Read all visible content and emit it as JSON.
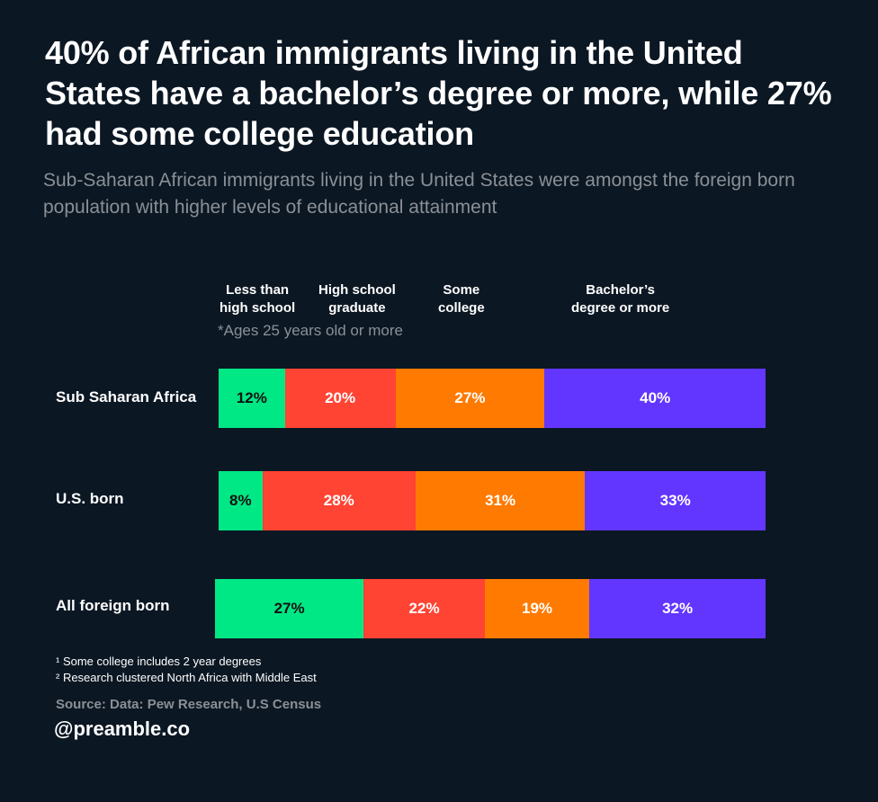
{
  "header": {
    "title": "40% of African immigrants living in the United States have a bachelor’s degree or more, while 27% had some college education",
    "subtitle": "Sub-Saharan African immigrants living in the United States were amongst the foreign born population with higher levels of educational attainment"
  },
  "legend": [
    {
      "line1": "Less than",
      "line2": "high school"
    },
    {
      "line1": "High school",
      "line2": "graduate"
    },
    {
      "line1": "Some",
      "line2": "college"
    },
    {
      "line1": "Bachelor’s",
      "line2": "degree or more"
    }
  ],
  "note": "*Ages 25 years old or more",
  "colors": {
    "less_than_high_school": "#00e785",
    "high_school_graduate": "#ff4433",
    "some_college": "#ff7a00",
    "bachelors_or_more": "#6236ff"
  },
  "chart_data": {
    "type": "bar",
    "orientation": "horizontal",
    "stacked": true,
    "categories": [
      "Sub Saharan Africa",
      "U.S. born",
      "All foreign born"
    ],
    "series": [
      {
        "name": "Less than high school",
        "values": [
          12,
          8,
          27
        ],
        "labels": [
          "12%",
          "8%",
          "27%"
        ]
      },
      {
        "name": "High school graduate",
        "values": [
          20,
          28,
          22
        ],
        "labels": [
          "20%",
          "28%",
          "22%"
        ]
      },
      {
        "name": "Some college",
        "values": [
          27,
          31,
          19
        ],
        "labels": [
          "27%",
          "31%",
          "19%"
        ]
      },
      {
        "name": "Bachelor’s degree or more",
        "values": [
          40,
          33,
          32
        ],
        "labels": [
          "40%",
          "33%",
          "32%"
        ]
      }
    ],
    "legend_position": "top",
    "grid": false
  },
  "footnotes": {
    "note1": "¹ Some college includes 2 year degrees",
    "note2": "² Research clustered North Africa with Middle East"
  },
  "source": "Source: Data: Pew Research, U.S Census",
  "handle": "@preamble.co"
}
